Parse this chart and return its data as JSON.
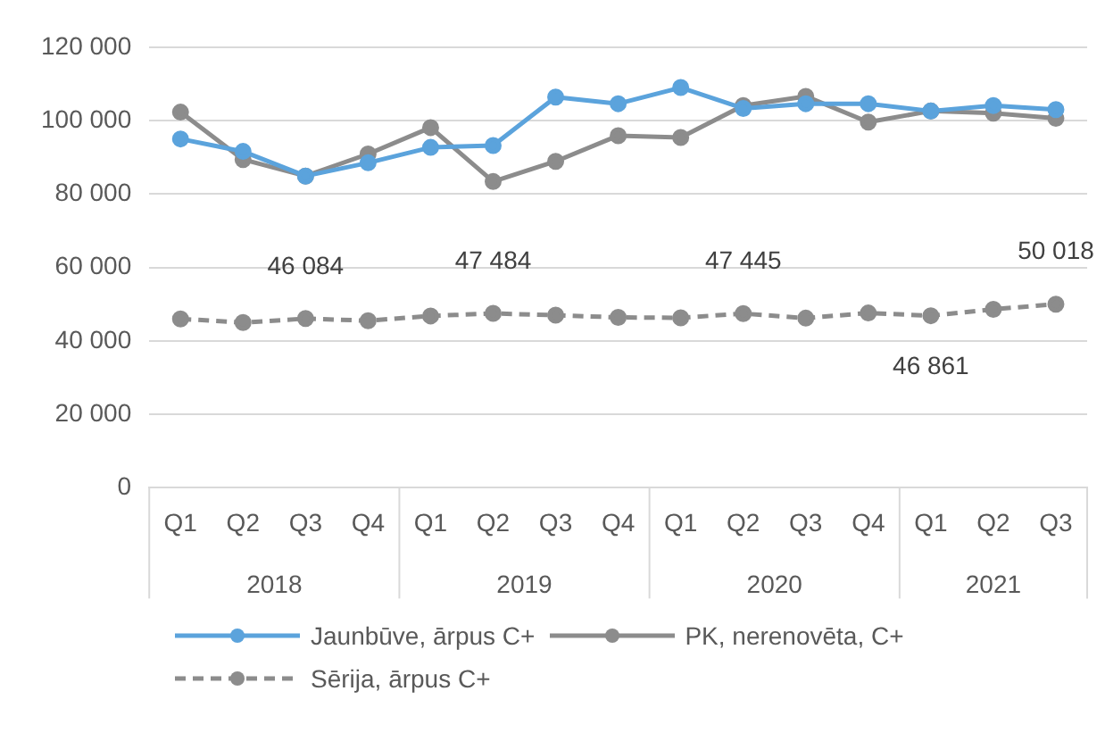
{
  "chart_data": {
    "type": "line",
    "categories": [
      "Q1",
      "Q2",
      "Q3",
      "Q4",
      "Q1",
      "Q2",
      "Q3",
      "Q4",
      "Q1",
      "Q2",
      "Q3",
      "Q4",
      "Q1",
      "Q2",
      "Q3"
    ],
    "annotations": [
      "2018",
      "2019",
      "2020",
      "2021"
    ],
    "ylim": [
      0,
      120000
    ],
    "yticks": [
      {
        "value": 0,
        "label": "0"
      },
      {
        "value": 20000,
        "label": "20 000"
      },
      {
        "value": 40000,
        "label": "40 000"
      },
      {
        "value": 60000,
        "label": "60 000"
      },
      {
        "value": 80000,
        "label": "80 000"
      },
      {
        "value": 100000,
        "label": "100 000"
      },
      {
        "value": 120000,
        "label": "120 000"
      }
    ],
    "grid": "y",
    "legend": "bottom",
    "marker": "circle",
    "series": [
      {
        "name": "Jaunbūve, ārpus C+",
        "color": "#5ba3dc",
        "line_style": "solid",
        "values": [
          95000,
          91600,
          84900,
          88500,
          92700,
          93200,
          106400,
          104600,
          109000,
          103300,
          104600,
          104600,
          102600,
          104100,
          103000
        ]
      },
      {
        "name": "PK, nerenovēta, C+",
        "color": "#8c8c8c",
        "line_style": "solid",
        "values": [
          102300,
          89400,
          84900,
          90900,
          98100,
          83400,
          88900,
          95900,
          95400,
          104100,
          106600,
          99600,
          102600,
          102000,
          100600
        ]
      },
      {
        "name": "Sērija, ārpus C+",
        "color": "#8c8c8c",
        "line_style": "dashed",
        "values": [
          46000,
          45000,
          46084,
          45500,
          46800,
          47484,
          47000,
          46400,
          46300,
          47445,
          46200,
          47600,
          46861,
          48600,
          50018
        ],
        "value_labels": [
          null,
          null,
          "46 084",
          null,
          null,
          "47 484",
          null,
          null,
          null,
          "47 445",
          null,
          null,
          "46 861",
          null,
          "50 018"
        ]
      }
    ]
  }
}
